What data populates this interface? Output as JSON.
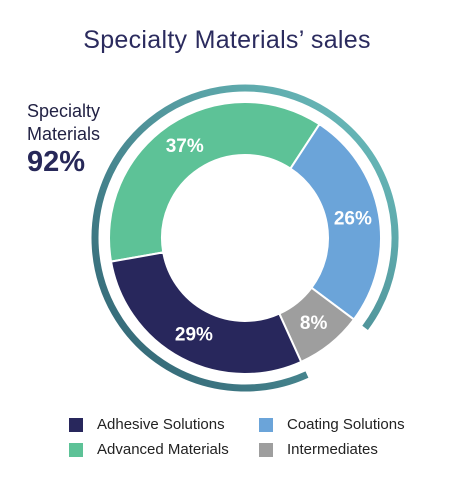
{
  "title": "Specialty Materials’ sales",
  "highlight": {
    "label_line1": "Specialty",
    "label_line2": "Materials",
    "value": "92%"
  },
  "chart_data": {
    "type": "pie",
    "title": "Specialty Materials’ sales",
    "slices": [
      {
        "name": "Advanced Materials",
        "value": 37,
        "label": "37%",
        "color": "#5dc297"
      },
      {
        "name": "Coating Solutions",
        "value": 26,
        "label": "26%",
        "color": "#6ba4d9"
      },
      {
        "name": "Intermediates",
        "value": 8,
        "label": "8%",
        "color": "#9e9e9e"
      },
      {
        "name": "Adhesive Solutions",
        "value": 29,
        "label": "29%",
        "color": "#28275c"
      }
    ],
    "highlight_arc": {
      "covers": [
        "Advanced Materials",
        "Coating Solutions",
        "Adhesive Solutions"
      ],
      "value": 92,
      "color_start": "#2e5f6f",
      "color_end": "#6ec2c0"
    },
    "legend": {
      "position": "bottom",
      "order": [
        "Adhesive Solutions",
        "Coating Solutions",
        "Advanced Materials",
        "Intermediates"
      ]
    }
  }
}
